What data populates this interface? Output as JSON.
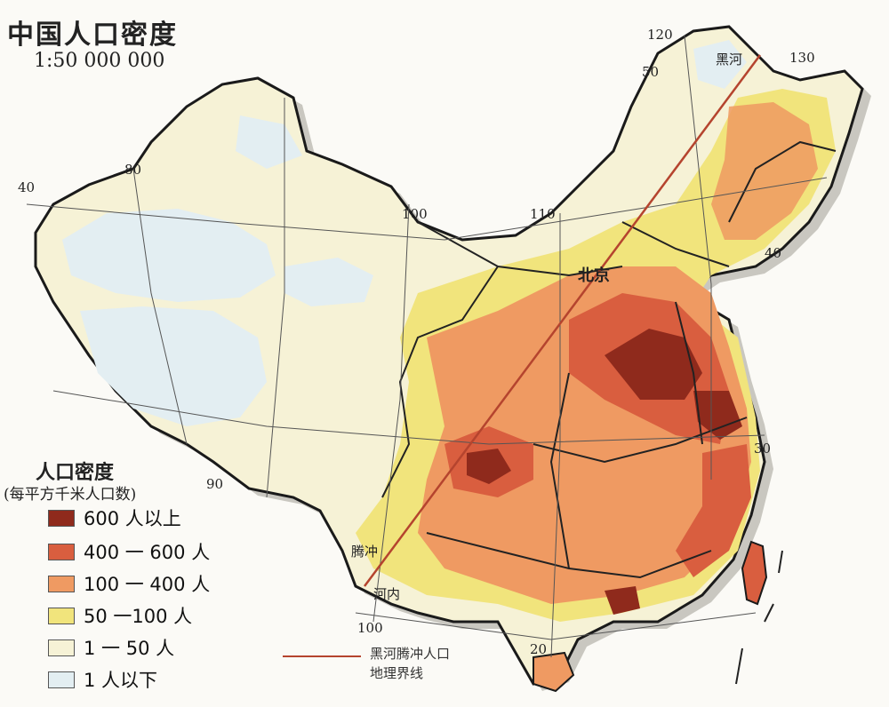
{
  "title": "中国人口密度",
  "scale": "1:50 000 000",
  "legend": {
    "title": "人口密度",
    "unit": "(每平方千米人口数)",
    "items": [
      {
        "label": "600 人以上",
        "color": "#8f2a1c"
      },
      {
        "label": "400 一 600 人",
        "color": "#d95e3f"
      },
      {
        "label": "100 一 400 人",
        "color": "#ef9a62"
      },
      {
        "label": "50 一100 人",
        "color": "#f1e47c"
      },
      {
        "label": "1 一 50 人",
        "color": "#f6f2d6"
      },
      {
        "label": "1 人以下",
        "color": "#e3eef2"
      }
    ]
  },
  "line_legend": {
    "line1": "黑河腾冲人口",
    "line2": "地理界线",
    "color": "#b5442e"
  },
  "labels": {
    "city_north": "北京",
    "city_heihe": "黑河",
    "city_tengchong": "腾冲",
    "city_hanoi": "河内",
    "lon_80": "80",
    "lon_90": "90",
    "lon_100a": "100",
    "lon_100b": "100",
    "lon_110": "110",
    "lon_120": "120",
    "lon_130": "130",
    "lat_20": "20",
    "lat_30": "30",
    "lat_40a": "40",
    "lat_40b": "40",
    "lat_50": "50"
  }
}
